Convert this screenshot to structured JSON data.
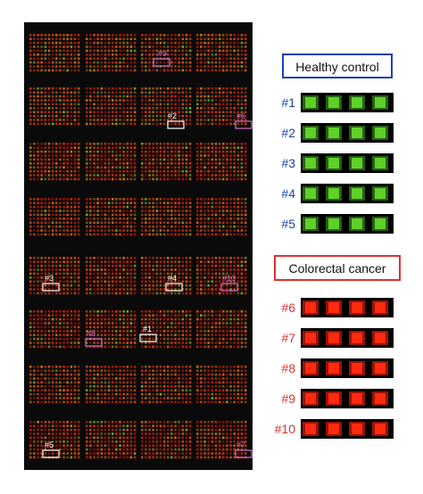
{
  "healthy": {
    "title": "Healthy control",
    "color": "#1f3fb5",
    "samples": [
      "#1",
      "#2",
      "#3",
      "#4",
      "#5"
    ]
  },
  "cancer": {
    "title": "Colorectal cancer",
    "color": "#e03030",
    "samples": [
      "#6",
      "#7",
      "#8",
      "#9",
      "#10"
    ]
  },
  "array_markers": [
    {
      "label": "#9",
      "color": "#d070d0"
    },
    {
      "label": "#2",
      "color": "#ffffff"
    },
    {
      "label": "#6",
      "color": "#d070d0"
    },
    {
      "label": "#3",
      "color": "#ffffff"
    },
    {
      "label": "#4",
      "color": "#ffffff"
    },
    {
      "label": "#10",
      "color": "#d070d0"
    },
    {
      "label": "#8",
      "color": "#d070d0"
    },
    {
      "label": "#1",
      "color": "#ffffff"
    },
    {
      "label": "#5",
      "color": "#ffffff"
    },
    {
      "label": "#7",
      "color": "#d070d0"
    }
  ]
}
